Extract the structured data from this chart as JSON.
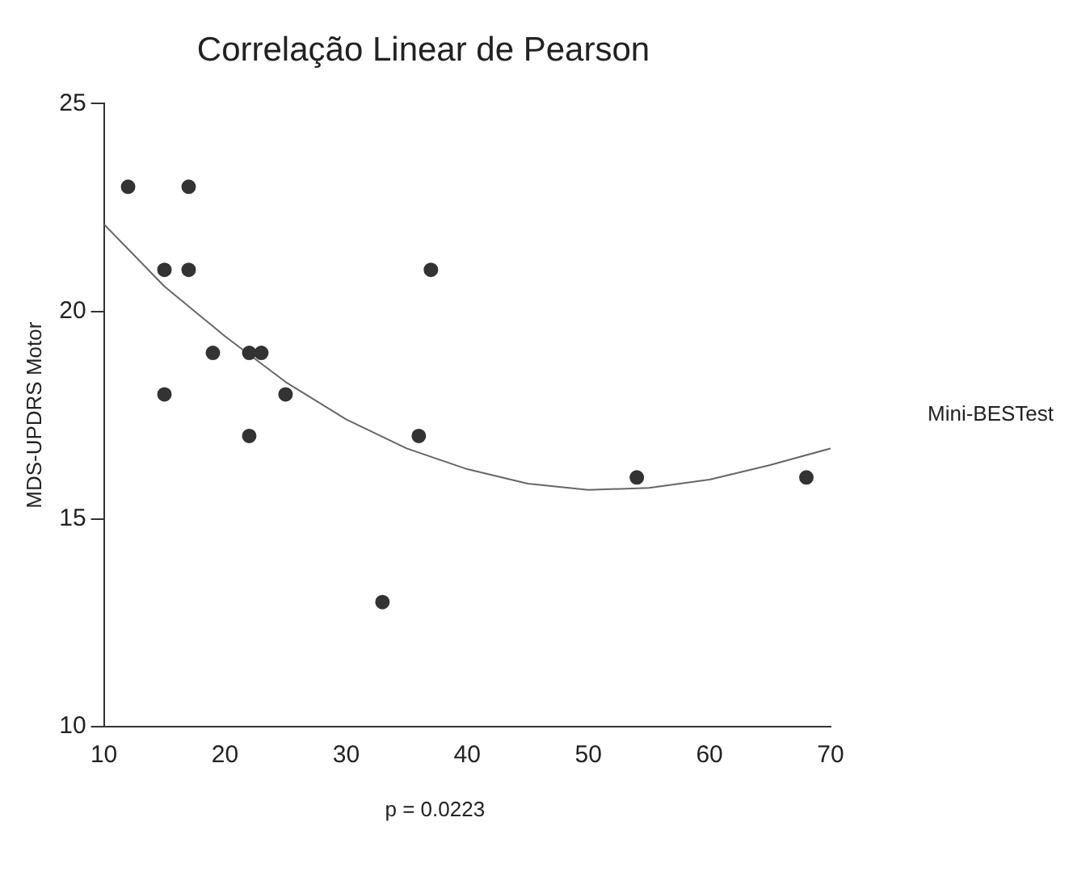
{
  "chart_data": {
    "type": "scatter",
    "title": "Correlação Linear de Pearson",
    "xlabel": "Mini-BESTest",
    "ylabel": "MDS-UPDRS Motor",
    "annotations": [
      "p = 0.0223"
    ],
    "xlim": [
      10,
      70
    ],
    "xticks": [
      10,
      20,
      30,
      40,
      50,
      60,
      70
    ],
    "ylim": [
      10,
      25
    ],
    "yticks": [
      10,
      15,
      20,
      25
    ],
    "grid": false,
    "legend": false,
    "marker": "circle",
    "series": [
      {
        "color": "#333333",
        "x": [
          12,
          15,
          15,
          17,
          17,
          19,
          22,
          23,
          22,
          25,
          33,
          36,
          37,
          54,
          68
        ],
        "values": [
          23,
          21,
          18,
          23,
          21,
          19,
          19,
          19,
          17,
          18,
          13,
          17,
          21,
          16,
          16
        ]
      },
      {
        "type": "line",
        "color": "#666666",
        "marker": "none",
        "line_style": "solid",
        "x": [
          10,
          15,
          20,
          25,
          30,
          35,
          40,
          45,
          50,
          55,
          60,
          65,
          70
        ],
        "values": [
          22.1,
          20.6,
          19.4,
          18.3,
          17.4,
          16.7,
          16.2,
          15.85,
          15.7,
          15.75,
          15.95,
          16.3,
          16.7
        ]
      }
    ]
  }
}
